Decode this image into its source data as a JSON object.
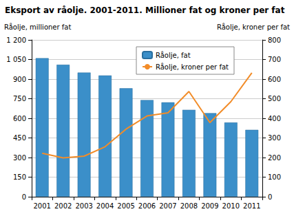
{
  "chart_data": {
    "type": "bar",
    "title": "Eksport av råolje. 2001-2011. Millioner fat og kroner per fat",
    "categories": [
      "2001",
      "2002",
      "2003",
      "2004",
      "2005",
      "2006",
      "2007",
      "2008",
      "2009",
      "2010",
      "2011"
    ],
    "series": [
      {
        "name": "Råolje, fat",
        "type": "bar",
        "color": "#3b8fc9",
        "values": [
          1060,
          1010,
          950,
          928,
          830,
          740,
          722,
          665,
          640,
          568,
          512
        ]
      },
      {
        "name": "Råolje, kroner per fat",
        "type": "line",
        "color": "#f28c28",
        "axis": "y2",
        "values": [
          222,
          198,
          207,
          255,
          345,
          412,
          428,
          537,
          378,
          485,
          632
        ]
      }
    ],
    "y_label": "Råolje, millioner fat",
    "y2_label": "Råolje, kroner per fat",
    "ylim": [
      0,
      1200
    ],
    "yticks": [
      0,
      150,
      300,
      450,
      600,
      750,
      900,
      {
        "value": 1050,
        "label": "1 050"
      },
      {
        "value": 1200,
        "label": "1 200"
      }
    ],
    "y2lim": [
      0,
      800
    ],
    "y2ticks": [
      0,
      100,
      200,
      300,
      400,
      500,
      600,
      700,
      800
    ],
    "legend": "top",
    "grid": true
  }
}
